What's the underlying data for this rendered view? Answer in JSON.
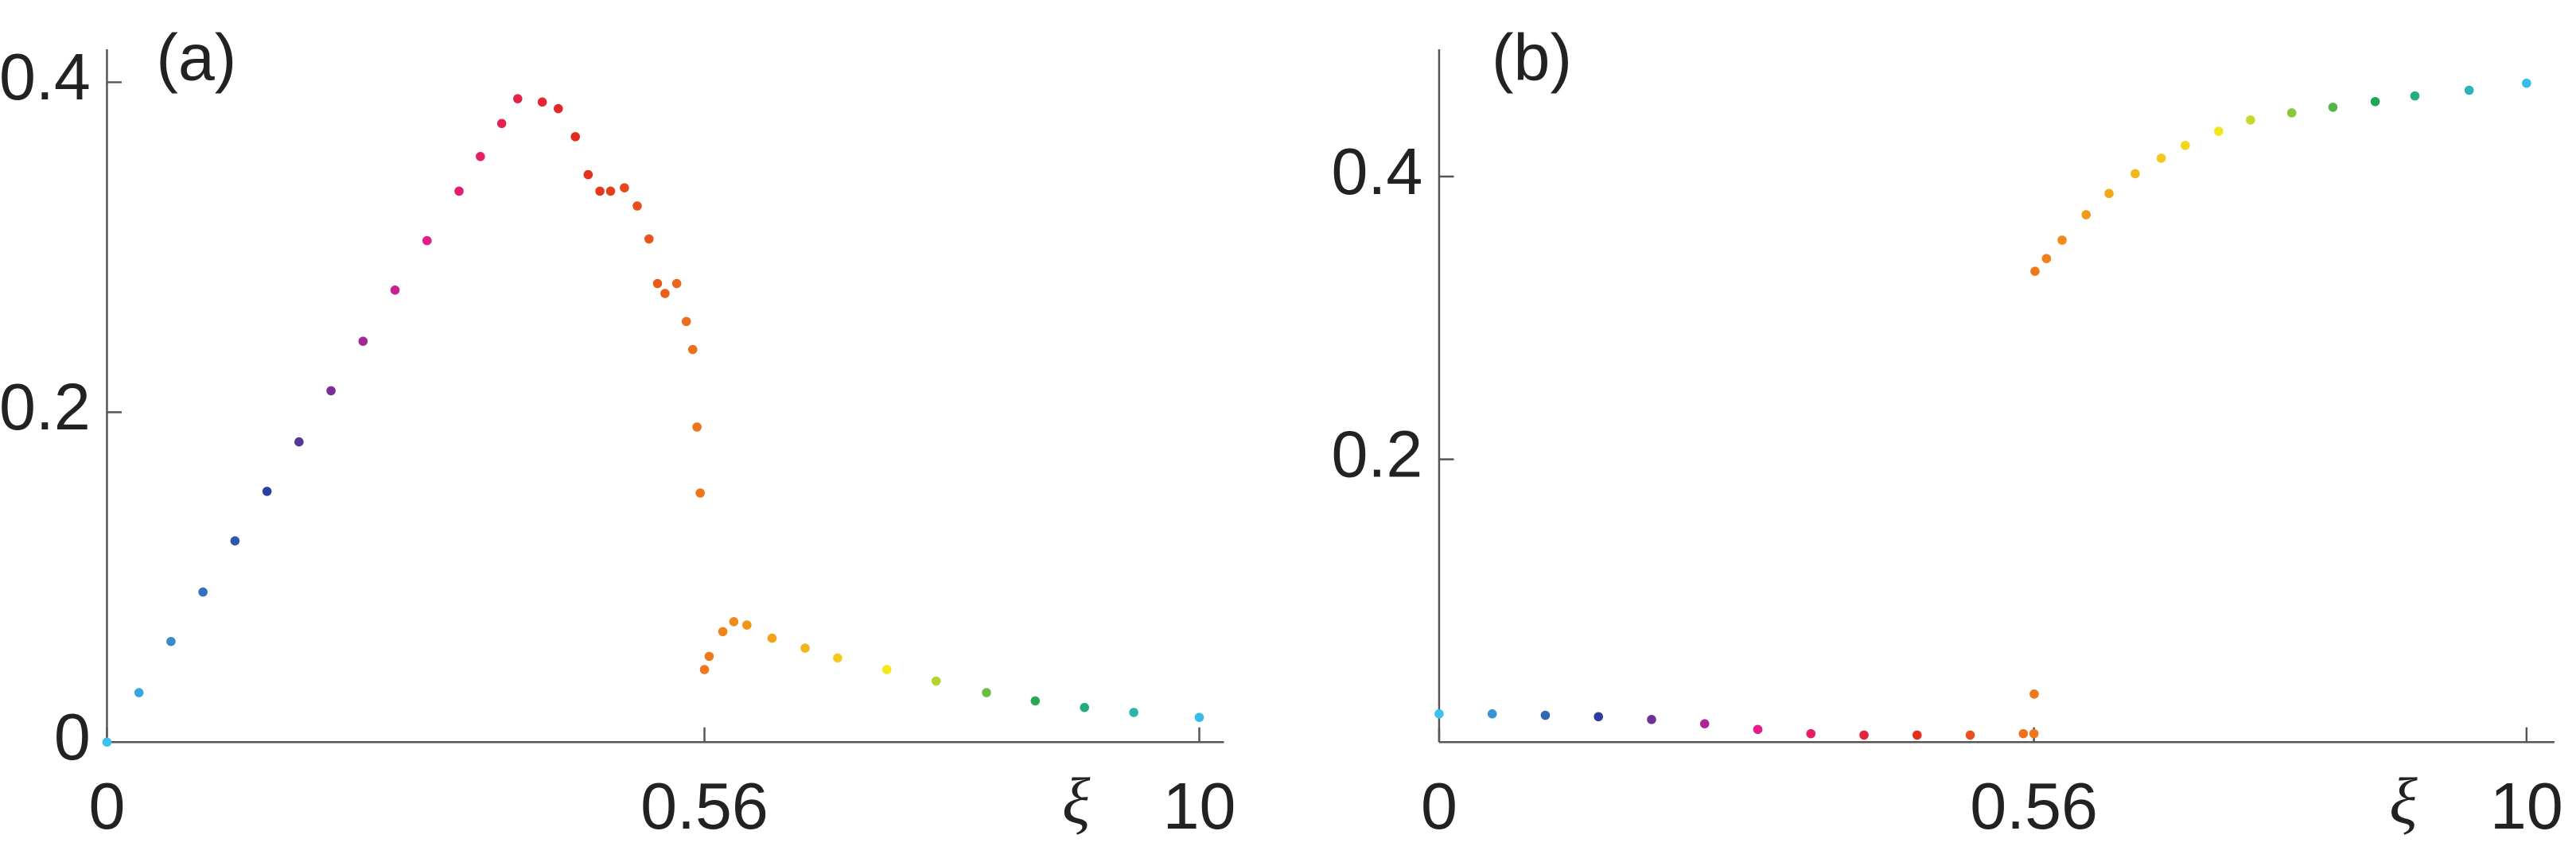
{
  "chart_data": [
    {
      "type": "scatter",
      "panel_label": "(a)",
      "x_label": "ξ",
      "x": [
        0,
        0.03,
        0.06,
        0.09,
        0.12,
        0.15,
        0.18,
        0.21,
        0.24,
        0.27,
        0.3,
        0.33,
        0.35,
        0.37,
        0.385,
        0.408,
        0.423,
        0.439,
        0.451,
        0.462,
        0.472,
        0.485,
        0.497,
        0.508,
        0.516,
        0.523,
        0.534,
        0.543,
        0.549,
        0.553,
        0.556,
        0.56,
        0.65,
        0.91,
        1.12,
        1.37,
        1.85,
        2.48,
        3.1,
        4.04,
        4.98,
        5.94,
        6.87,
        7.81,
        8.75,
        10
      ],
      "values": [
        0,
        0.03,
        0.061,
        0.091,
        0.122,
        0.152,
        0.182,
        0.213,
        0.243,
        0.274,
        0.304,
        0.334,
        0.355,
        0.375,
        0.39,
        0.388,
        0.384,
        0.367,
        0.344,
        0.334,
        0.334,
        0.336,
        0.325,
        0.305,
        0.278,
        0.272,
        0.278,
        0.255,
        0.238,
        0.191,
        0.151,
        0.044,
        0.052,
        0.067,
        0.073,
        0.071,
        0.063,
        0.057,
        0.051,
        0.044,
        0.037,
        0.03,
        0.025,
        0.021,
        0.018,
        0.015
      ],
      "xlim": [
        0,
        10
      ],
      "xticks": [
        0,
        0.56,
        10
      ],
      "ylim": [
        0,
        0.42
      ],
      "yticks": [
        0,
        0.2,
        0.4
      ],
      "colormap": [
        "#3cc0ee",
        "#2a3f9e",
        "#e6198e",
        "#e3281c",
        "#f0891b",
        "#f4e81b",
        "#1ea55a",
        "#35bde8"
      ]
    },
    {
      "type": "scatter",
      "panel_label": "(b)",
      "x_label": "ξ",
      "x": [
        0,
        0.05,
        0.1,
        0.15,
        0.2,
        0.25,
        0.3,
        0.35,
        0.4,
        0.45,
        0.5,
        0.55,
        0.56,
        0.565,
        0.58,
        0.8,
        1.1,
        1.56,
        2.0,
        2.5,
        3.0,
        3.46,
        4.1,
        4.71,
        5.5,
        6.29,
        7.1,
        7.86,
        8.9,
        10
      ],
      "values": [
        0.02,
        0.02,
        0.019,
        0.018,
        0.016,
        0.013,
        0.009,
        0.006,
        0.005,
        0.005,
        0.005,
        0.006,
        0.006,
        0.034,
        0.333,
        0.342,
        0.355,
        0.373,
        0.388,
        0.402,
        0.413,
        0.422,
        0.432,
        0.44,
        0.445,
        0.449,
        0.453,
        0.457,
        0.461,
        0.466
      ],
      "xlim": [
        0,
        10
      ],
      "xticks": [
        0,
        0.56,
        10
      ],
      "ylim": [
        0,
        0.49
      ],
      "yticks": [
        0.2,
        0.4
      ],
      "colormap": [
        "#3cc0ee",
        "#2a3f9e",
        "#e6198e",
        "#e3281c",
        "#f0891b",
        "#f4e81b",
        "#1ea55a",
        "#35bde8"
      ]
    }
  ]
}
